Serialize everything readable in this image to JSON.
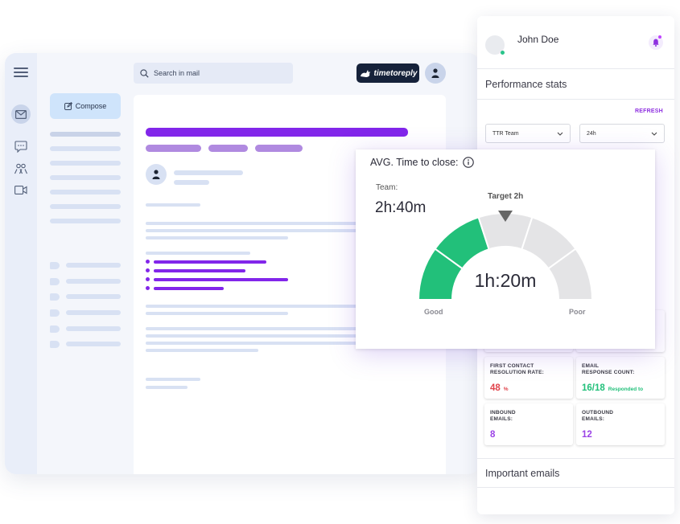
{
  "mail": {
    "compose_label": "Compose",
    "search_placeholder": "Search in mail",
    "brand": "timetoreply"
  },
  "panel": {
    "user_name": "John Doe",
    "performance_title": "Performance stats",
    "refresh_label": "REFRESH",
    "team_select": "TTR Team",
    "period_select": "24h",
    "metrics": [
      {
        "label_line1": "FIRST CONTACT",
        "label_line2": "RESOLUTION RATE:",
        "value": "48",
        "suffix": "%",
        "color": "#e0434b"
      },
      {
        "label_line1": "EMAIL",
        "label_line2": "RESPONSE COUNT:",
        "value": "16/18",
        "suffix": "Responded to",
        "color": "#22c07a"
      },
      {
        "label_line1": "INBOUND",
        "label_line2": "EMAILS:",
        "value": "8",
        "suffix": "",
        "color": "#9b43e6"
      },
      {
        "label_line1": "OUTBOUND",
        "label_line2": "EMAILS:",
        "value": "12",
        "suffix": "",
        "color": "#9b43e6"
      }
    ],
    "important_title": "Important emails"
  },
  "gauge": {
    "title": "AVG. Time to close:",
    "team_label": "Team:",
    "team_value": "2h:40m",
    "target_label": "Target 2h",
    "value": "1h:20m",
    "good_label": "Good",
    "poor_label": "Poor",
    "segments_total": 5,
    "segments_filled": 2,
    "fill_color": "#22c07a",
    "empty_color": "#e4e4e6"
  },
  "colors": {
    "accent": "#8e2fe0",
    "bar_primary": "#8226ea",
    "bar_secondary": "#b08ae0"
  }
}
